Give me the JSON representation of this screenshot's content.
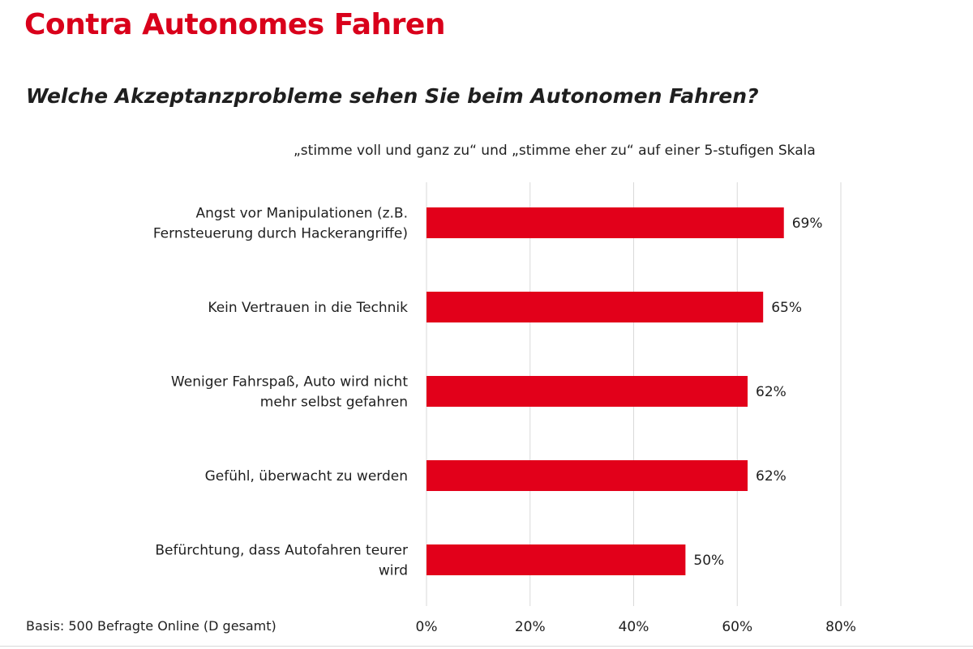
{
  "header": {
    "title": "Contra Autonomes Fahren",
    "subtitle": "Welche Akzeptanzprobleme sehen Sie beim Autonomen Fahren?",
    "note": "„stimme voll und ganz zu“ und „stimme eher zu“ auf einer 5-stufigen Skala"
  },
  "footer": {
    "basis": "Basis: 500 Befragte Online (D gesamt)"
  },
  "colors": {
    "accent": "#d9001b",
    "bar": "#e2001a",
    "grid": "#d9d9d9"
  },
  "chart_data": {
    "type": "bar",
    "orientation": "horizontal",
    "categories": [
      [
        "Angst vor Manipulationen (z.B.",
        "Fernsteuerung durch Hackerangriffe)"
      ],
      [
        "Kein Vertrauen in die Technik"
      ],
      [
        "Weniger Fahrspaß, Auto wird nicht",
        "mehr selbst gefahren"
      ],
      [
        "Gefühl, überwacht zu werden"
      ],
      [
        "Befürchtung, dass Autofahren teurer",
        "wird"
      ]
    ],
    "values": [
      69,
      65,
      62,
      62,
      50
    ],
    "value_labels": [
      "69%",
      "65%",
      "62%",
      "62%",
      "50%"
    ],
    "xlim": [
      0,
      80
    ],
    "ticks": [
      0,
      20,
      40,
      60,
      80
    ],
    "tick_labels": [
      "0%",
      "20%",
      "40%",
      "60%",
      "80%"
    ],
    "grid": true
  }
}
